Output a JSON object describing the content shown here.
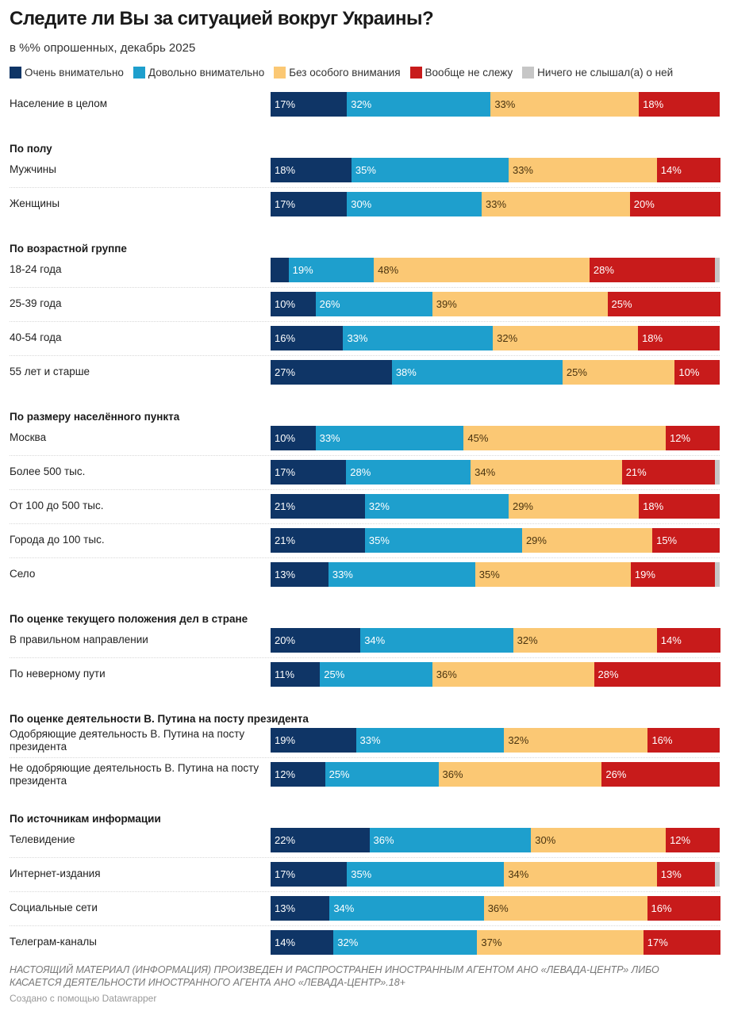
{
  "chart_data": {
    "type": "bar",
    "orientation": "horizontal-stacked-100",
    "title": "Следите ли Вы за ситуацией вокруг Украины?",
    "subtitle": "в %% опрошенных, декабрь 2025",
    "unit": "%",
    "series": [
      {
        "name": "Очень внимательно",
        "color": "#0f3566"
      },
      {
        "name": "Довольно внимательно",
        "color": "#1e9fcd"
      },
      {
        "name": "Без особого внимания",
        "color": "#fbc874"
      },
      {
        "name": "Вообще не слежу",
        "color": "#c81b1b"
      },
      {
        "name": "Ничего не слышал(а) о ней",
        "color": "#c6c6c6"
      }
    ],
    "groups": [
      {
        "label": "",
        "rows": [
          {
            "label": "Население в целом",
            "values": [
              17,
              32,
              33,
              18,
              0
            ]
          }
        ]
      },
      {
        "label": "По полу",
        "rows": [
          {
            "label": "Мужчины",
            "values": [
              18,
              35,
              33,
              14,
              0
            ]
          },
          {
            "label": "Женщины",
            "values": [
              17,
              30,
              33,
              20,
              0
            ]
          }
        ]
      },
      {
        "label": "По возрастной группе",
        "rows": [
          {
            "label": "18-24 года",
            "values": [
              4,
              19,
              48,
              28,
              1
            ],
            "hidden_labels": [
              0
            ]
          },
          {
            "label": "25-39 года",
            "values": [
              10,
              26,
              39,
              25,
              0
            ]
          },
          {
            "label": "40-54 года",
            "values": [
              16,
              33,
              32,
              18,
              0
            ]
          },
          {
            "label": "55 лет и старше",
            "values": [
              27,
              38,
              25,
              10,
              0
            ]
          }
        ]
      },
      {
        "label": "По размеру населённого пункта",
        "rows": [
          {
            "label": "Москва",
            "values": [
              10,
              33,
              45,
              12,
              0
            ]
          },
          {
            "label": "Более 500 тыс.",
            "values": [
              17,
              28,
              34,
              21,
              1
            ]
          },
          {
            "label": "От 100 до 500 тыс.",
            "values": [
              21,
              32,
              29,
              18,
              0
            ]
          },
          {
            "label": "Города до 100 тыс.",
            "values": [
              21,
              35,
              29,
              15,
              0
            ]
          },
          {
            "label": "Село",
            "values": [
              13,
              33,
              35,
              19,
              1
            ]
          }
        ]
      },
      {
        "label": "По оценке текущего положения дел в стране",
        "rows": [
          {
            "label": "В правильном направлении",
            "values": [
              20,
              34,
              32,
              14,
              0
            ]
          },
          {
            "label": "По неверному пути",
            "values": [
              11,
              25,
              36,
              28,
              0
            ]
          }
        ]
      },
      {
        "label": "По оценке деятельности В. Путина на посту президента",
        "rows": [
          {
            "label": "Одобряющие деятельность В. Путина на посту президента",
            "values": [
              19,
              33,
              32,
              16,
              0
            ]
          },
          {
            "label": "Не одобряющие деятельность В. Путина на посту президента",
            "values": [
              12,
              25,
              36,
              26,
              0
            ]
          }
        ]
      },
      {
        "label": "По источникам информации",
        "rows": [
          {
            "label": "Телевидение",
            "values": [
              22,
              36,
              30,
              12,
              0
            ]
          },
          {
            "label": "Интернет-издания",
            "values": [
              17,
              35,
              34,
              13,
              1
            ]
          },
          {
            "label": "Социальные сети",
            "values": [
              13,
              34,
              36,
              16,
              0
            ]
          },
          {
            "label": "Телеграм-каналы",
            "values": [
              14,
              32,
              37,
              17,
              0
            ]
          }
        ]
      }
    ],
    "xlim": [
      0,
      100
    ],
    "grid": false,
    "legend_position": "top-left"
  },
  "footer": {
    "note": "НАСТОЯЩИЙ МАТЕРИАЛ (ИНФОРМАЦИЯ) ПРОИЗВЕДЕН И РАСПРОСТРАНЕН ИНОСТРАННЫМ АГЕНТОМ АНО «ЛЕВАДА-ЦЕНТР» ЛИБО КАСАЕТСЯ ДЕЯТЕЛЬНОСТИ ИНОСТРАННОГО АГЕНТА АНО «ЛЕВАДА-ЦЕНТР».18+",
    "credit": "Создано с помощью Datawrapper"
  }
}
